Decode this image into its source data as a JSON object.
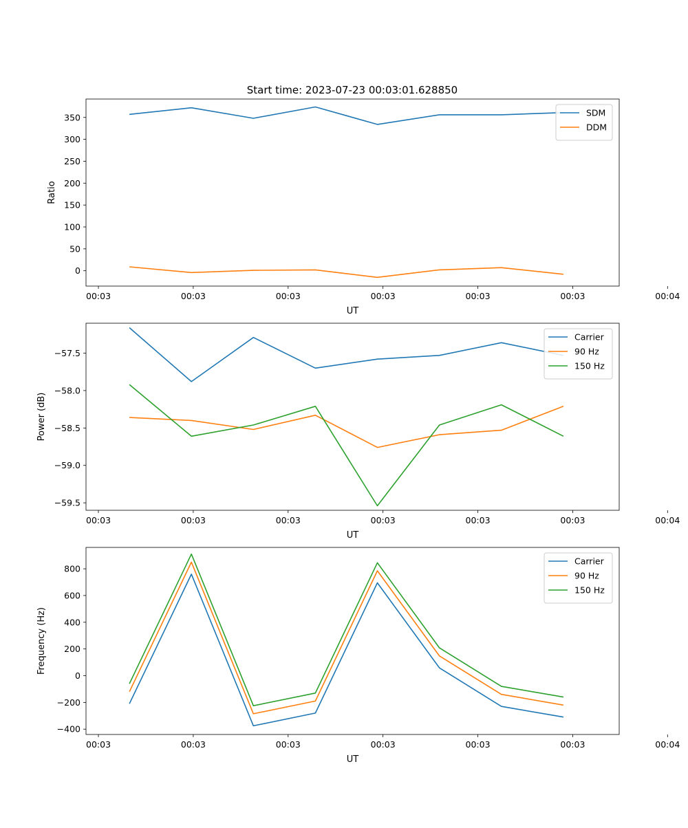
{
  "figure_title": "Start time: 2023-07-23 00:03:01.628850",
  "chart_data": [
    {
      "type": "line",
      "title": "Start time: 2023-07-23 00:03:01.628850",
      "xlabel": "UT",
      "ylabel": "Ratio",
      "xlim": [
        -0.2,
        8.4
      ],
      "ylim": [
        -35,
        392
      ],
      "x": [
        0.5,
        1.5,
        2.5,
        3.5,
        4.5,
        5.5,
        6.5,
        7.5
      ],
      "xticks": [
        0,
        1.53,
        3.06,
        4.59,
        6.12,
        7.65,
        9.18
      ],
      "xtick_labels": [
        "00:03",
        "00:03",
        "00:03",
        "00:03",
        "00:03",
        "00:03",
        "00:04"
      ],
      "yticks": [
        0,
        50,
        100,
        150,
        200,
        250,
        300,
        350
      ],
      "ytick_labels": [
        "0",
        "50",
        "100",
        "150",
        "200",
        "250",
        "300",
        "350"
      ],
      "legend_position": "top-right",
      "series": [
        {
          "name": "SDM",
          "color": "#1f77b4",
          "values": [
            357,
            372,
            348,
            374,
            334,
            356,
            356,
            361
          ]
        },
        {
          "name": "DDM",
          "color": "#ff7f0e",
          "values": [
            9,
            -4,
            1,
            2,
            -15,
            2,
            7,
            -8
          ]
        }
      ]
    },
    {
      "type": "line",
      "title": "",
      "xlabel": "UT",
      "ylabel": "Power (dB)",
      "xlim": [
        -0.2,
        8.4
      ],
      "ylim": [
        -59.6,
        -57.1
      ],
      "x": [
        0.5,
        1.5,
        2.5,
        3.5,
        4.5,
        5.5,
        6.5,
        7.5
      ],
      "xticks": [
        0,
        1.53,
        3.06,
        4.59,
        6.12,
        7.65,
        9.18
      ],
      "xtick_labels": [
        "00:03",
        "00:03",
        "00:03",
        "00:03",
        "00:03",
        "00:03",
        "00:04"
      ],
      "yticks": [
        -59.5,
        -59.0,
        -58.5,
        -58.0,
        -57.5
      ],
      "ytick_labels": [
        "−59.5",
        "−59.0",
        "−58.5",
        "−58.0",
        "−57.5"
      ],
      "legend_position": "top-right",
      "series": [
        {
          "name": "Carrier",
          "color": "#1f77b4",
          "values": [
            -57.16,
            -57.88,
            -57.29,
            -57.7,
            -57.58,
            -57.53,
            -57.36,
            -57.53
          ]
        },
        {
          "name": "90 Hz",
          "color": "#ff7f0e",
          "values": [
            -58.36,
            -58.4,
            -58.52,
            -58.33,
            -58.76,
            -58.59,
            -58.53,
            -58.21
          ]
        },
        {
          "name": "150 Hz",
          "color": "#2ca02c",
          "values": [
            -57.92,
            -58.61,
            -58.46,
            -58.21,
            -59.54,
            -58.46,
            -58.19,
            -58.61
          ]
        }
      ]
    },
    {
      "type": "line",
      "title": "",
      "xlabel": "UT",
      "ylabel": "Frequency (Hz)",
      "xlim": [
        -0.2,
        8.4
      ],
      "ylim": [
        -440,
        960
      ],
      "x": [
        0.5,
        1.5,
        2.5,
        3.5,
        4.5,
        5.5,
        6.5,
        7.5
      ],
      "xticks": [
        0,
        1.53,
        3.06,
        4.59,
        6.12,
        7.65,
        9.18
      ],
      "xtick_labels": [
        "00:03",
        "00:03",
        "00:03",
        "00:03",
        "00:03",
        "00:03",
        "00:04"
      ],
      "yticks": [
        -400,
        -200,
        0,
        200,
        400,
        600,
        800
      ],
      "ytick_labels": [
        "−400",
        "−200",
        "0",
        "200",
        "400",
        "600",
        "800"
      ],
      "legend_position": "top-right",
      "series": [
        {
          "name": "Carrier",
          "color": "#1f77b4",
          "values": [
            -210,
            760,
            -375,
            -280,
            695,
            58,
            -230,
            -310
          ]
        },
        {
          "name": "90 Hz",
          "color": "#ff7f0e",
          "values": [
            -120,
            850,
            -285,
            -190,
            785,
            148,
            -140,
            -220
          ]
        },
        {
          "name": "150 Hz",
          "color": "#2ca02c",
          "values": [
            -60,
            910,
            -225,
            -130,
            845,
            208,
            -80,
            -160
          ]
        }
      ]
    }
  ]
}
